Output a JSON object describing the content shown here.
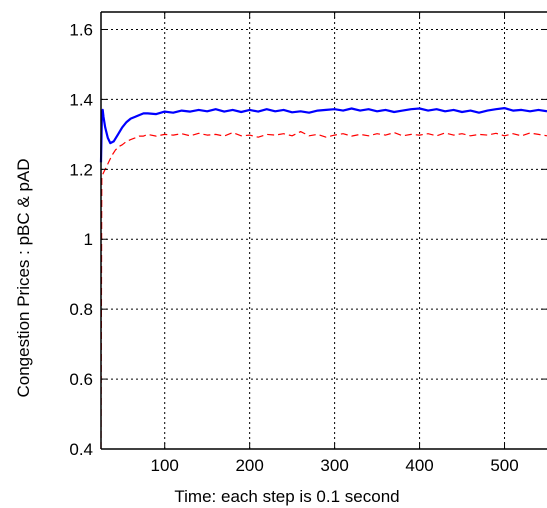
{
  "chart_data": {
    "type": "line",
    "title": "",
    "xlabel": "Time: each step is 0.1 second",
    "ylabel": "Congestion Prices : pBC & pAD",
    "xlim": [
      25,
      550
    ],
    "ylim": [
      0.4,
      1.65
    ],
    "grid": true,
    "legend": "none",
    "xticks": [
      100,
      200,
      300,
      400,
      500
    ],
    "xtick_labels": [
      "100",
      "200",
      "300",
      "400",
      "500"
    ],
    "yticks": [
      0.4,
      0.6,
      0.8,
      1.0,
      1.2,
      1.4,
      1.6
    ],
    "ytick_labels": [
      "0.4",
      "0.6",
      "0.8",
      "1",
      "1.2",
      "1.4",
      "1.6"
    ],
    "series": [
      {
        "color": "#0000ff",
        "style": "solid",
        "x": [
          25,
          26,
          27,
          28,
          30,
          33,
          36,
          40,
          45,
          50,
          55,
          60,
          65,
          70,
          75,
          80,
          90,
          100,
          110,
          120,
          130,
          140,
          150,
          160,
          170,
          180,
          190,
          200,
          210,
          220,
          230,
          240,
          250,
          260,
          270,
          280,
          290,
          300,
          310,
          320,
          330,
          340,
          350,
          360,
          370,
          380,
          390,
          400,
          410,
          420,
          430,
          440,
          450,
          460,
          470,
          480,
          490,
          500,
          510,
          520,
          530,
          540,
          550
        ],
        "y": [
          1.22,
          1.34,
          1.37,
          1.35,
          1.32,
          1.29,
          1.275,
          1.28,
          1.3,
          1.32,
          1.335,
          1.345,
          1.35,
          1.355,
          1.36,
          1.36,
          1.358,
          1.365,
          1.362,
          1.368,
          1.365,
          1.37,
          1.366,
          1.372,
          1.365,
          1.37,
          1.364,
          1.37,
          1.365,
          1.372,
          1.366,
          1.37,
          1.363,
          1.366,
          1.362,
          1.368,
          1.37,
          1.372,
          1.368,
          1.374,
          1.368,
          1.372,
          1.366,
          1.37,
          1.364,
          1.368,
          1.372,
          1.374,
          1.368,
          1.372,
          1.366,
          1.37,
          1.364,
          1.368,
          1.362,
          1.368,
          1.372,
          1.375,
          1.368,
          1.37,
          1.366,
          1.37,
          1.366
        ]
      },
      {
        "color": "#ff0000",
        "style": "dashed",
        "x": [
          25,
          26,
          28,
          30,
          34,
          38,
          42,
          46,
          50,
          55,
          60,
          65,
          70,
          75,
          80,
          90,
          100,
          110,
          120,
          130,
          140,
          150,
          160,
          170,
          180,
          190,
          200,
          210,
          220,
          230,
          240,
          250,
          260,
          270,
          280,
          290,
          300,
          310,
          320,
          330,
          340,
          350,
          360,
          370,
          380,
          390,
          400,
          410,
          420,
          430,
          440,
          450,
          460,
          470,
          480,
          490,
          500,
          510,
          520,
          530,
          540,
          550
        ],
        "y": [
          0.4,
          1.18,
          1.19,
          1.2,
          1.22,
          1.24,
          1.255,
          1.265,
          1.27,
          1.28,
          1.285,
          1.29,
          1.295,
          1.295,
          1.3,
          1.295,
          1.3,
          1.298,
          1.302,
          1.296,
          1.303,
          1.298,
          1.3,
          1.295,
          1.305,
          1.296,
          1.298,
          1.292,
          1.3,
          1.298,
          1.302,
          1.296,
          1.308,
          1.296,
          1.3,
          1.292,
          1.298,
          1.302,
          1.295,
          1.3,
          1.296,
          1.302,
          1.298,
          1.305,
          1.296,
          1.3,
          1.298,
          1.302,
          1.296,
          1.304,
          1.298,
          1.302,
          1.296,
          1.3,
          1.298,
          1.303,
          1.296,
          1.302,
          1.296,
          1.304,
          1.3,
          1.296
        ]
      }
    ]
  }
}
